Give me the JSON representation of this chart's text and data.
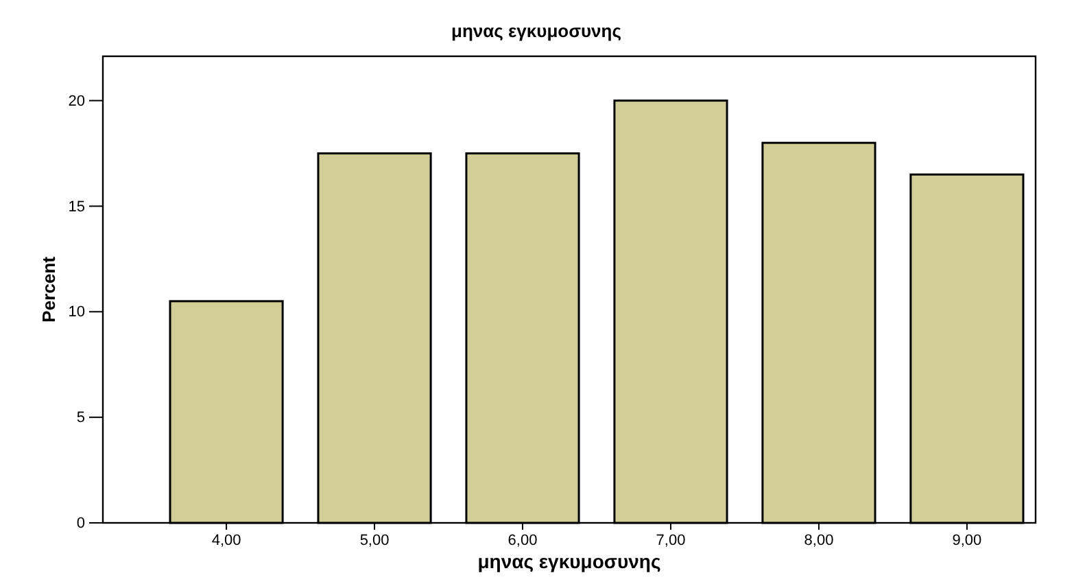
{
  "chart_data": {
    "type": "bar",
    "title": "μηνας εγκυμοσυνης",
    "xlabel": "μηνας εγκυμοσυνης",
    "ylabel": "Percent",
    "categories": [
      "4,00",
      "5,00",
      "6,00",
      "7,00",
      "8,00",
      "9,00"
    ],
    "values": [
      10.5,
      17.5,
      17.5,
      20,
      18,
      16.5
    ],
    "color": "#d3ce98",
    "ylim": [
      0,
      22.1
    ],
    "yticks": [
      0,
      5,
      10,
      15,
      20
    ],
    "grid": false
  }
}
